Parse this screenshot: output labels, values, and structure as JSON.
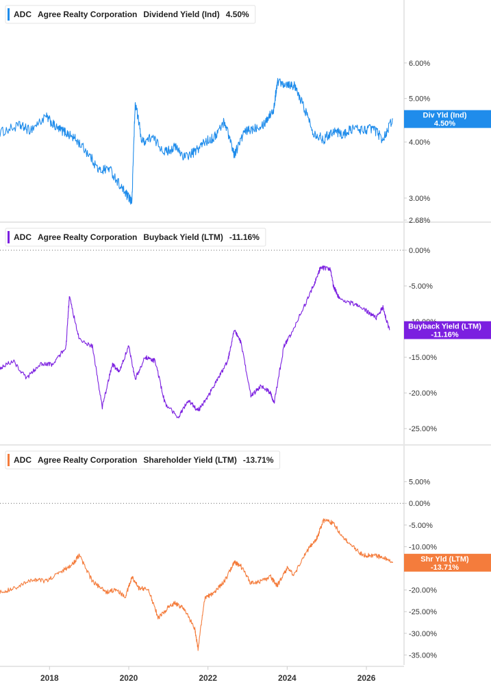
{
  "chart_data": [
    {
      "type": "line",
      "ticker": "ADC",
      "company": "Agree Realty Corporation",
      "metric": "Dividend Yield (Ind)",
      "legend_value": "4.50%",
      "color": "#1f8ceb",
      "scale": "log",
      "ylim": [
        2.68,
        7.2
      ],
      "y_ticks": [
        "6.00%",
        "5.00%",
        "4.00%",
        "3.00%",
        "2.68%"
      ],
      "y_tick_values": [
        6.0,
        5.0,
        4.0,
        3.0,
        2.68
      ],
      "tag_label": "Div Yld (Ind)",
      "tag_value": "4.50%",
      "x": [
        "2016-10",
        "2017-04",
        "2017-07",
        "2017-12",
        "2018-03",
        "2018-06",
        "2018-09",
        "2019-01",
        "2019-04",
        "2019-07",
        "2019-11",
        "2020-01",
        "2020-02",
        "2020-03",
        "2020-05",
        "2020-08",
        "2020-12",
        "2021-03",
        "2021-06",
        "2021-09",
        "2021-12",
        "2022-03",
        "2022-06",
        "2022-09",
        "2022-12",
        "2023-03",
        "2023-06",
        "2023-09",
        "2023-10",
        "2024-01",
        "2024-03",
        "2024-06",
        "2024-09",
        "2024-12",
        "2025-03",
        "2025-06",
        "2025-09",
        "2025-12",
        "2026-03",
        "2026-06",
        "2026-09"
      ],
      "values": [
        4.2,
        4.35,
        4.25,
        4.55,
        4.3,
        4.2,
        4.05,
        3.75,
        3.45,
        3.5,
        3.15,
        3.0,
        2.95,
        4.9,
        4.0,
        4.1,
        3.8,
        3.9,
        3.7,
        3.8,
        4.0,
        4.1,
        4.45,
        3.75,
        4.2,
        4.3,
        4.4,
        4.75,
        5.45,
        5.4,
        5.35,
        4.8,
        4.2,
        4.05,
        4.25,
        4.15,
        4.3,
        4.25,
        4.3,
        4.05,
        4.5
      ]
    },
    {
      "type": "line",
      "ticker": "ADC",
      "company": "Agree Realty Corporation",
      "metric": "Buyback Yield (LTM)",
      "legend_value": "-11.16%",
      "color": "#7b1fe0",
      "scale": "linear",
      "ylim": [
        -27,
        0
      ],
      "y_ticks": [
        "0.00%",
        "-5.00%",
        "-10.00%",
        "-15.00%",
        "-20.00%",
        "-25.00%"
      ],
      "y_tick_values": [
        0,
        -5,
        -10,
        -15,
        -20,
        -25
      ],
      "tag_label": "Buyback Yield (LTM)",
      "tag_value": "-11.16%",
      "x": [
        "2016-10",
        "2017-02",
        "2017-06",
        "2017-10",
        "2018-02",
        "2018-06",
        "2018-07",
        "2018-10",
        "2019-02",
        "2019-05",
        "2019-08",
        "2019-10",
        "2020-01",
        "2020-03",
        "2020-06",
        "2020-09",
        "2020-12",
        "2021-04",
        "2021-07",
        "2021-10",
        "2022-01",
        "2022-04",
        "2022-07",
        "2022-09",
        "2022-11",
        "2023-02",
        "2023-05",
        "2023-08",
        "2023-09",
        "2023-12",
        "2024-02",
        "2024-06",
        "2024-09",
        "2024-11",
        "2025-02",
        "2025-03",
        "2025-05",
        "2025-09",
        "2026-01",
        "2026-04",
        "2026-06",
        "2026-08"
      ],
      "values": [
        -16.5,
        -15.5,
        -18.0,
        -16.0,
        -16.0,
        -13.5,
        -6.5,
        -12.5,
        -13.5,
        -22.0,
        -16.0,
        -17.0,
        -13.5,
        -18.0,
        -15.0,
        -15.5,
        -21.5,
        -23.5,
        -21.0,
        -22.5,
        -20.5,
        -18.0,
        -15.5,
        -11.0,
        -13.0,
        -20.5,
        -19.0,
        -20.0,
        -21.5,
        -13.5,
        -12.0,
        -8.0,
        -5.0,
        -2.5,
        -2.5,
        -5.0,
        -7.0,
        -7.5,
        -8.5,
        -9.5,
        -8.0,
        -11.2
      ]
    },
    {
      "type": "line",
      "ticker": "ADC",
      "company": "Agree Realty Corporation",
      "metric": "Shareholder Yield (LTM)",
      "legend_value": "-13.71%",
      "color": "#f47c3c",
      "scale": "linear",
      "ylim": [
        -37,
        7
      ],
      "y_ticks": [
        "5.00%",
        "0.00%",
        "-5.00%",
        "-10.00%",
        "-15.00%",
        "-20.00%",
        "-25.00%",
        "-30.00%",
        "-35.00%"
      ],
      "y_tick_values": [
        5,
        0,
        -5,
        -10,
        -15,
        -20,
        -25,
        -30,
        -35
      ],
      "tag_label": "Shr Yld (LTM)",
      "tag_value": "-13.71%",
      "x": [
        "2016-10",
        "2017-03",
        "2017-08",
        "2017-12",
        "2018-05",
        "2018-08",
        "2018-10",
        "2019-02",
        "2019-06",
        "2019-09",
        "2019-12",
        "2020-02",
        "2020-04",
        "2020-07",
        "2020-10",
        "2021-01",
        "2021-03",
        "2021-06",
        "2021-09",
        "2021-10",
        "2021-12",
        "2022-03",
        "2022-06",
        "2022-09",
        "2022-11",
        "2023-02",
        "2023-05",
        "2023-08",
        "2023-10",
        "2024-01",
        "2024-03",
        "2024-07",
        "2024-10",
        "2024-12",
        "2025-03",
        "2025-06",
        "2025-09",
        "2025-12",
        "2026-03",
        "2026-06",
        "2026-09"
      ],
      "values": [
        -20.5,
        -19.5,
        -17.5,
        -18.0,
        -15.5,
        -14.0,
        -12.0,
        -18.0,
        -20.5,
        -20.0,
        -21.5,
        -17.0,
        -19.5,
        -20.0,
        -26.5,
        -24.0,
        -23.0,
        -24.5,
        -29.0,
        -33.5,
        -22.0,
        -20.5,
        -18.0,
        -13.5,
        -14.5,
        -18.5,
        -18.0,
        -17.0,
        -19.0,
        -15.0,
        -16.5,
        -11.0,
        -8.0,
        -4.0,
        -4.5,
        -8.0,
        -10.0,
        -12.0,
        -12.0,
        -12.5,
        -13.7
      ]
    }
  ],
  "x_axis": {
    "range": [
      2016.75,
      2026.95
    ],
    "tick_labels": [
      "2018",
      "2020",
      "2022",
      "2024",
      "2026"
    ],
    "tick_values": [
      2018,
      2020,
      2022,
      2024,
      2026
    ]
  },
  "colors": {
    "text": "#222222",
    "axis": "#cccccc",
    "zero_line": "#666666"
  }
}
